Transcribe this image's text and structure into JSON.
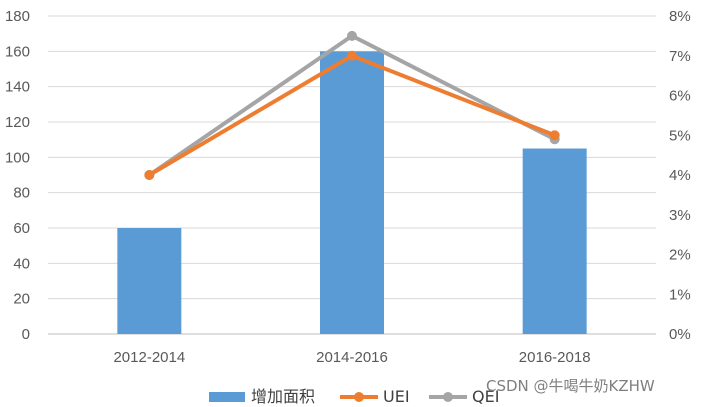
{
  "chart_data": {
    "type": "bar",
    "categories": [
      "2012-2014",
      "2014-2016",
      "2016-2018"
    ],
    "bars": {
      "name": "增加面积",
      "values": [
        60,
        160,
        105
      ],
      "color": "#5B9BD5"
    },
    "lines": [
      {
        "name": "UEI",
        "values": [
          4.0,
          7.0,
          5.0
        ],
        "color": "#ED7D31"
      },
      {
        "name": "QEI",
        "values": [
          4.0,
          7.5,
          4.9
        ],
        "color": "#A5A5A5"
      }
    ],
    "y_left": {
      "ylim": [
        0,
        180
      ],
      "ticks": [
        0,
        20,
        40,
        60,
        80,
        100,
        120,
        140,
        160,
        180
      ]
    },
    "y_right": {
      "ylim": [
        0,
        8
      ],
      "ticks": [
        "0%",
        "1%",
        "2%",
        "3%",
        "4%",
        "5%",
        "6%",
        "7%",
        "8%"
      ]
    },
    "grid": true,
    "legend_position": "bottom"
  },
  "watermark": "CSDN @牛喝牛奶KZHW"
}
